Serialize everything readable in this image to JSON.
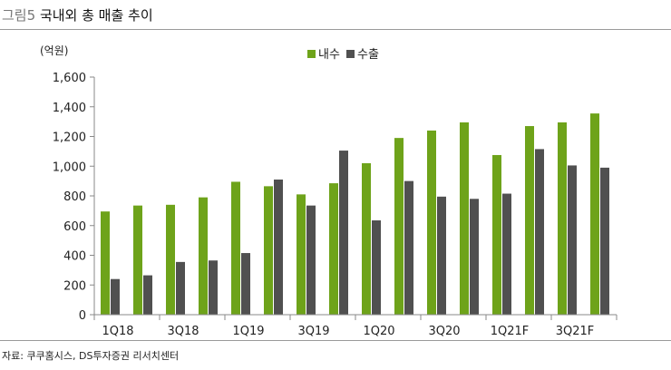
{
  "figure": {
    "number": "그림5",
    "title": "국내외 총 매출 추이",
    "source": "자료: 쿠쿠홈시스, DS투자증권 리서치센터"
  },
  "colors": {
    "domestic": "#6ea31a",
    "export": "#505050",
    "axis": "#888888"
  },
  "chart_data": {
    "type": "bar",
    "title": "국내외 총 매출 추이",
    "ylabel": "(억원)",
    "xlabel": "",
    "ylim": [
      0,
      1600
    ],
    "yticks": [
      0,
      200,
      400,
      600,
      800,
      1000,
      1200,
      1400,
      1600
    ],
    "ytick_labels": [
      "0",
      "200",
      "400",
      "600",
      "800",
      "1,000",
      "1,200",
      "1,400",
      "1,600"
    ],
    "grid": false,
    "legend_position": "top-center",
    "categories": [
      "1Q18",
      "2Q18",
      "3Q18",
      "4Q18",
      "1Q19",
      "2Q19",
      "3Q19",
      "4Q19",
      "1Q20",
      "2Q20",
      "3Q20",
      "4Q20",
      "1Q21F",
      "2Q21F",
      "3Q21F",
      "4Q21F"
    ],
    "visible_tick_labels": [
      "1Q18",
      "3Q18",
      "1Q19",
      "3Q19",
      "1Q20",
      "3Q20",
      "1Q21F",
      "3Q21F"
    ],
    "series": [
      {
        "name": "내수",
        "color": "#6ea31a",
        "values": [
          695,
          735,
          740,
          790,
          895,
          865,
          810,
          885,
          1020,
          1190,
          1240,
          1295,
          1075,
          1270,
          1295,
          1355
        ]
      },
      {
        "name": "수출",
        "color": "#505050",
        "values": [
          240,
          265,
          355,
          365,
          415,
          910,
          735,
          1105,
          635,
          900,
          795,
          780,
          815,
          1115,
          1005,
          990
        ]
      }
    ]
  }
}
